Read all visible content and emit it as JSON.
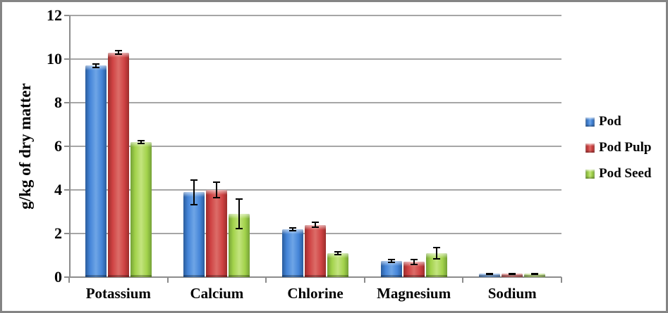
{
  "frame": {
    "border_color": "#848484",
    "background": "#ffffff"
  },
  "colors": {
    "gridline": "#a6a6a6",
    "axis": "#8c8c8c",
    "error_bar": "#000000"
  },
  "chart_data": {
    "type": "bar",
    "title": "",
    "xlabel": "",
    "ylabel": "g/kg of dry matter",
    "ylim": [
      0,
      12
    ],
    "yticks": [
      0,
      2,
      4,
      6,
      8,
      10,
      12
    ],
    "grid": true,
    "legend_position": "right",
    "categories": [
      "Potassium",
      "Calcium",
      "Chlorine",
      "Magnesium",
      "Sodium"
    ],
    "series": [
      {
        "name": "Pod",
        "color_edge": "#2a5c9c",
        "color_main": "#4585d8",
        "color_light": "#6ea5e6",
        "values": [
          9.7,
          3.9,
          2.2,
          0.75,
          0.15
        ],
        "errors": [
          0.12,
          0.6,
          0.1,
          0.1,
          0.04
        ]
      },
      {
        "name": "Pod Pulp",
        "color_edge": "#9b2d2b",
        "color_main": "#cf4243",
        "color_light": "#dc6d68",
        "values": [
          10.3,
          4.0,
          2.4,
          0.7,
          0.15
        ],
        "errors": [
          0.12,
          0.4,
          0.15,
          0.15,
          0.04
        ]
      },
      {
        "name": "Pod Seed",
        "color_edge": "#74a136",
        "color_main": "#a2d24b",
        "color_light": "#c3e47e",
        "values": [
          6.2,
          2.9,
          1.1,
          1.1,
          0.15
        ],
        "errors": [
          0.1,
          0.7,
          0.1,
          0.3,
          0.04
        ]
      }
    ]
  }
}
